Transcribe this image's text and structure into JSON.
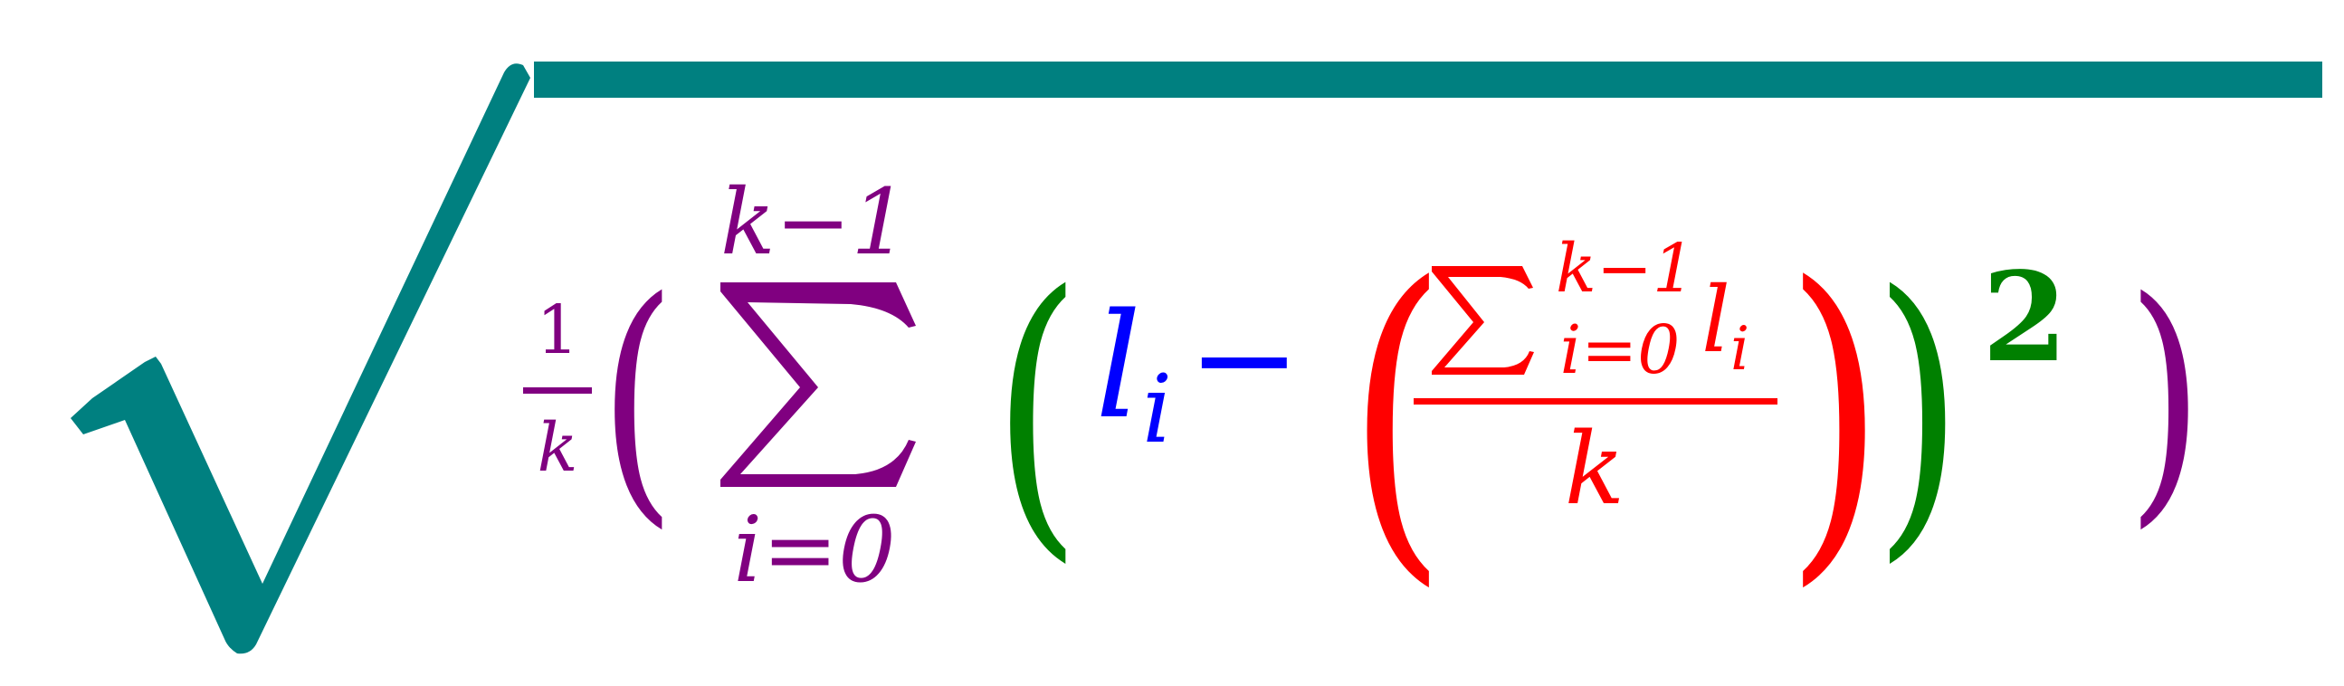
{
  "colors": {
    "radical": "#008080",
    "outer": "#800080",
    "inner": "#008000",
    "mean": "#ff0000",
    "term": "#0000ff"
  },
  "outer_fraction": {
    "numerator": "1",
    "denominator": "k"
  },
  "sum_main": {
    "symbol": "∑",
    "upper": "k−1",
    "lower": "i=0"
  },
  "term_var": {
    "base": "l",
    "sub": "i"
  },
  "minus": "−",
  "mean_fraction": {
    "numerator_sum": {
      "symbol": "∑",
      "upper": "k−1",
      "lower": "i=0"
    },
    "numerator_var": {
      "base": "l",
      "sub": "i"
    },
    "denominator": "k"
  },
  "exponent": "2",
  "parens": {
    "open": "(",
    "close": ")"
  }
}
